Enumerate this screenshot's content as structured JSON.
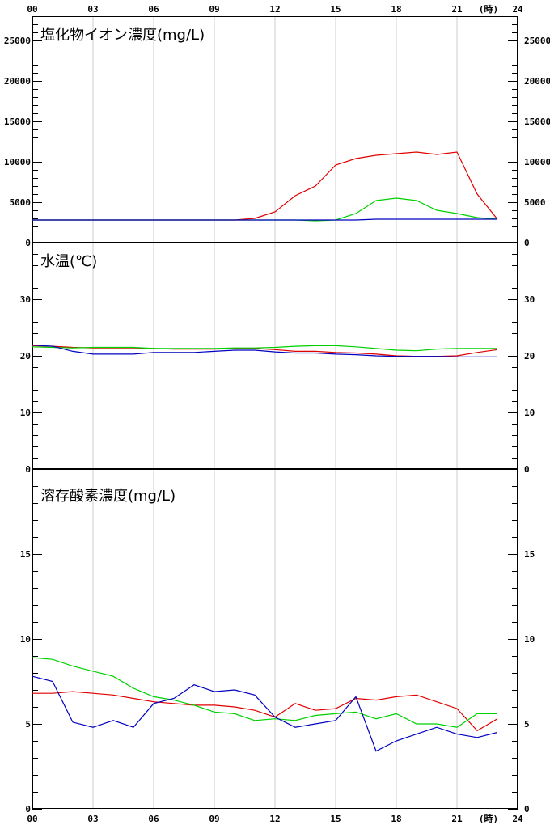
{
  "time_axis": {
    "ticks": [
      "00",
      "03",
      "06",
      "09",
      "12",
      "15",
      "18",
      "21",
      "24"
    ],
    "unit": "(時)"
  },
  "chart_data": [
    {
      "type": "line",
      "title": "塩化物イオン濃度(mg/L)",
      "xlim": [
        0,
        24
      ],
      "ylim": [
        0,
        28000
      ],
      "yticks": [
        0,
        5000,
        10000,
        15000,
        20000,
        25000
      ],
      "grid": "vertical",
      "x": [
        0,
        1,
        2,
        3,
        4,
        5,
        6,
        7,
        8,
        9,
        10,
        11,
        12,
        13,
        14,
        15,
        16,
        17,
        18,
        19,
        20,
        21,
        22,
        23
      ],
      "series": [
        {
          "color": "#e00000",
          "values": [
            2800,
            2800,
            2800,
            2800,
            2800,
            2800,
            2800,
            2800,
            2800,
            2800,
            2800,
            3000,
            3800,
            5800,
            7000,
            9600,
            10400,
            10800,
            11000,
            11200,
            10900,
            11200,
            6000,
            2900
          ]
        },
        {
          "color": "#00d000",
          "values": [
            2800,
            2800,
            2800,
            2800,
            2800,
            2800,
            2800,
            2800,
            2800,
            2800,
            2800,
            2800,
            2800,
            2800,
            2700,
            2800,
            3600,
            5200,
            5500,
            5200,
            4000,
            3600,
            3100,
            2900
          ]
        },
        {
          "color": "#0000c0",
          "values": [
            2800,
            2800,
            2800,
            2800,
            2800,
            2800,
            2800,
            2800,
            2800,
            2800,
            2800,
            2800,
            2800,
            2800,
            2800,
            2800,
            2800,
            2900,
            2900,
            2900,
            2900,
            2900,
            2900,
            2900
          ]
        }
      ]
    },
    {
      "type": "line",
      "title": "水温(℃)",
      "xlim": [
        0,
        24
      ],
      "ylim": [
        0,
        40
      ],
      "yticks": [
        0,
        10,
        20,
        30
      ],
      "grid": "vertical",
      "x": [
        0,
        1,
        2,
        3,
        4,
        5,
        6,
        7,
        8,
        9,
        10,
        11,
        12,
        13,
        14,
        15,
        16,
        17,
        18,
        19,
        20,
        21,
        22,
        23
      ],
      "series": [
        {
          "color": "#e00000",
          "values": [
            21.8,
            21.7,
            21.5,
            21.4,
            21.4,
            21.4,
            21.3,
            21.2,
            21.2,
            21.2,
            21.3,
            21.3,
            21.1,
            20.8,
            20.8,
            20.6,
            20.5,
            20.3,
            20.0,
            19.9,
            19.9,
            20.0,
            20.6,
            21.1
          ]
        },
        {
          "color": "#00d000",
          "values": [
            21.6,
            21.5,
            21.4,
            21.5,
            21.5,
            21.5,
            21.3,
            21.3,
            21.3,
            21.3,
            21.4,
            21.4,
            21.5,
            21.7,
            21.8,
            21.8,
            21.6,
            21.3,
            21.0,
            20.9,
            21.2,
            21.3,
            21.3,
            21.3
          ]
        },
        {
          "color": "#0000c0",
          "values": [
            21.9,
            21.7,
            20.8,
            20.3,
            20.3,
            20.3,
            20.6,
            20.6,
            20.6,
            20.8,
            21.0,
            21.0,
            20.7,
            20.5,
            20.5,
            20.3,
            20.2,
            20.0,
            19.9,
            19.9,
            19.9,
            19.8,
            19.8,
            19.8
          ]
        }
      ]
    },
    {
      "type": "line",
      "title": "溶存酸素濃度(mg/L)",
      "xlim": [
        0,
        24
      ],
      "ylim": [
        0,
        20
      ],
      "yticks": [
        0,
        5,
        10,
        15
      ],
      "grid": "vertical",
      "x": [
        0,
        1,
        2,
        3,
        4,
        5,
        6,
        7,
        8,
        9,
        10,
        11,
        12,
        13,
        14,
        15,
        16,
        17,
        18,
        19,
        20,
        21,
        22,
        23
      ],
      "series": [
        {
          "color": "#e00000",
          "values": [
            6.8,
            6.8,
            6.9,
            6.8,
            6.7,
            6.5,
            6.3,
            6.2,
            6.1,
            6.1,
            6.0,
            5.8,
            5.4,
            6.2,
            5.8,
            5.9,
            6.5,
            6.4,
            6.6,
            6.7,
            6.3,
            5.9,
            4.6,
            5.3
          ]
        },
        {
          "color": "#00d000",
          "values": [
            8.9,
            8.8,
            8.4,
            8.1,
            7.8,
            7.1,
            6.6,
            6.4,
            6.1,
            5.7,
            5.6,
            5.2,
            5.3,
            5.2,
            5.5,
            5.6,
            5.7,
            5.3,
            5.6,
            5.0,
            5.0,
            4.8,
            5.6,
            5.6
          ]
        },
        {
          "color": "#0000c0",
          "values": [
            7.8,
            7.5,
            5.1,
            4.8,
            5.2,
            4.8,
            6.2,
            6.5,
            7.3,
            6.9,
            7.0,
            6.7,
            5.4,
            4.8,
            5.0,
            5.2,
            6.6,
            3.4,
            4.0,
            4.4,
            4.8,
            4.4,
            4.2,
            4.5
          ]
        }
      ]
    }
  ]
}
